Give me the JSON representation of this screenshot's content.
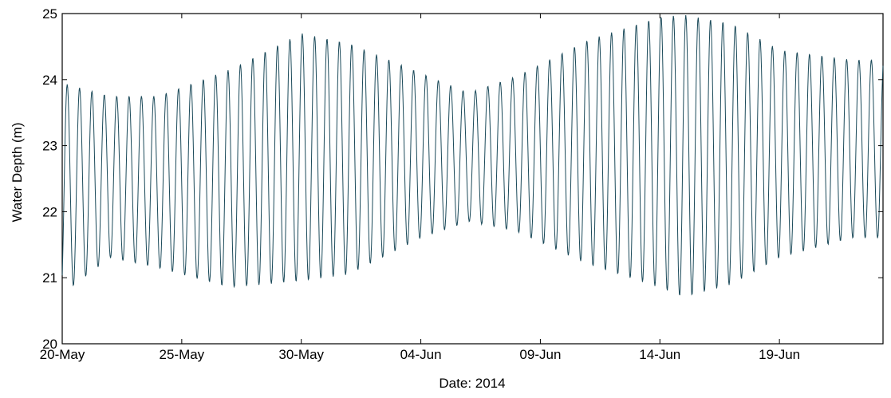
{
  "chart_data": {
    "type": "line",
    "title": "",
    "xlabel": "Date: 2014",
    "ylabel": "Water Depth (m)",
    "ylim": [
      20,
      25
    ],
    "xlim": [
      "2014-05-20",
      "2014-06-23T08:00"
    ],
    "grid": false,
    "y_ticks": [
      20,
      21,
      22,
      23,
      24,
      25
    ],
    "x_ticks": [
      {
        "date": "2014-05-20",
        "label": "20-May"
      },
      {
        "date": "2014-05-25",
        "label": "25-May"
      },
      {
        "date": "2014-05-30",
        "label": "30-May"
      },
      {
        "date": "2014-06-04",
        "label": "04-Jun"
      },
      {
        "date": "2014-06-09",
        "label": "09-Jun"
      },
      {
        "date": "2014-06-14",
        "label": "14-Jun"
      },
      {
        "date": "2014-06-19",
        "label": "19-Jun"
      }
    ],
    "line_color": "#1b4a5a",
    "series": [
      {
        "name": "",
        "sampling": "hourly, starting 2014-05-20 00:00",
        "tide_maxima_m": [
          {
            "date": "2014-05-20",
            "high": 23.95,
            "low": 20.75
          },
          {
            "date": "2014-05-22",
            "high": 23.75,
            "low": 21.3
          },
          {
            "date": "2014-05-24",
            "high": 23.75,
            "low": 21.15
          },
          {
            "date": "2014-05-27",
            "high": 24.15,
            "low": 20.85
          },
          {
            "date": "2014-05-30",
            "high": 24.7,
            "low": 20.95
          },
          {
            "date": "2014-06-01",
            "high": 24.55,
            "low": 21.05
          },
          {
            "date": "2014-06-04",
            "high": 24.1,
            "low": 21.6
          },
          {
            "date": "2014-06-06",
            "high": 23.8,
            "low": 21.85
          },
          {
            "date": "2014-06-08",
            "high": 24.05,
            "low": 21.7
          },
          {
            "date": "2014-06-11",
            "high": 24.6,
            "low": 21.2
          },
          {
            "date": "2014-06-14",
            "high": 24.95,
            "low": 20.85
          },
          {
            "date": "2014-06-15",
            "high": 24.98,
            "low": 20.7
          },
          {
            "date": "2014-06-17",
            "high": 24.85,
            "low": 20.9
          },
          {
            "date": "2014-06-19",
            "high": 24.45,
            "low": 21.3
          },
          {
            "date": "2014-06-22",
            "high": 24.3,
            "low": 21.6
          }
        ]
      }
    ]
  }
}
